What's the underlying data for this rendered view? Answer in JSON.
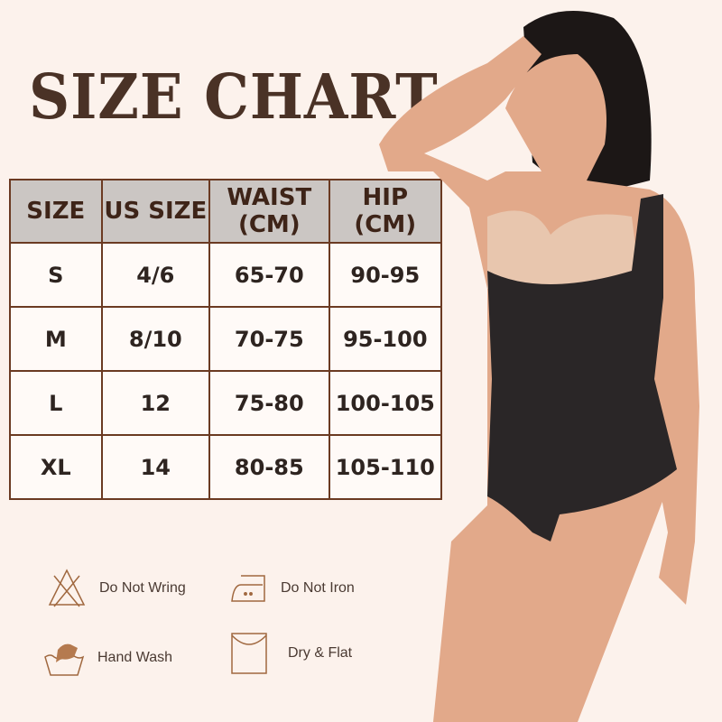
{
  "title": "SIZE CHART",
  "table": {
    "headers": [
      [
        "SIZE"
      ],
      [
        "US SIZE"
      ],
      [
        "WAIST",
        "(CM)"
      ],
      [
        "HIP",
        "(CM)"
      ]
    ],
    "rows": [
      [
        "S",
        "4/6",
        "65-70",
        "90-95"
      ],
      [
        "M",
        "8/10",
        "70-75",
        "95-100"
      ],
      [
        "L",
        "12",
        "75-80",
        "100-105"
      ],
      [
        "XL",
        "14",
        "80-85",
        "105-110"
      ]
    ]
  },
  "care": [
    {
      "label": "Do Not Wring",
      "icon": "do-not-wring-icon"
    },
    {
      "label": "Do Not Iron",
      "icon": "do-not-iron-icon"
    },
    {
      "label": "Hand Wash",
      "icon": "hand-wash-icon"
    },
    {
      "label": "Dry & Flat",
      "icon": "dry-flat-icon"
    }
  ],
  "colors": {
    "background": "#fcf2ec",
    "header": "#cbc6c3",
    "border": "#6b3a22",
    "icon": "#a0683f",
    "garment": "#2a2627"
  }
}
